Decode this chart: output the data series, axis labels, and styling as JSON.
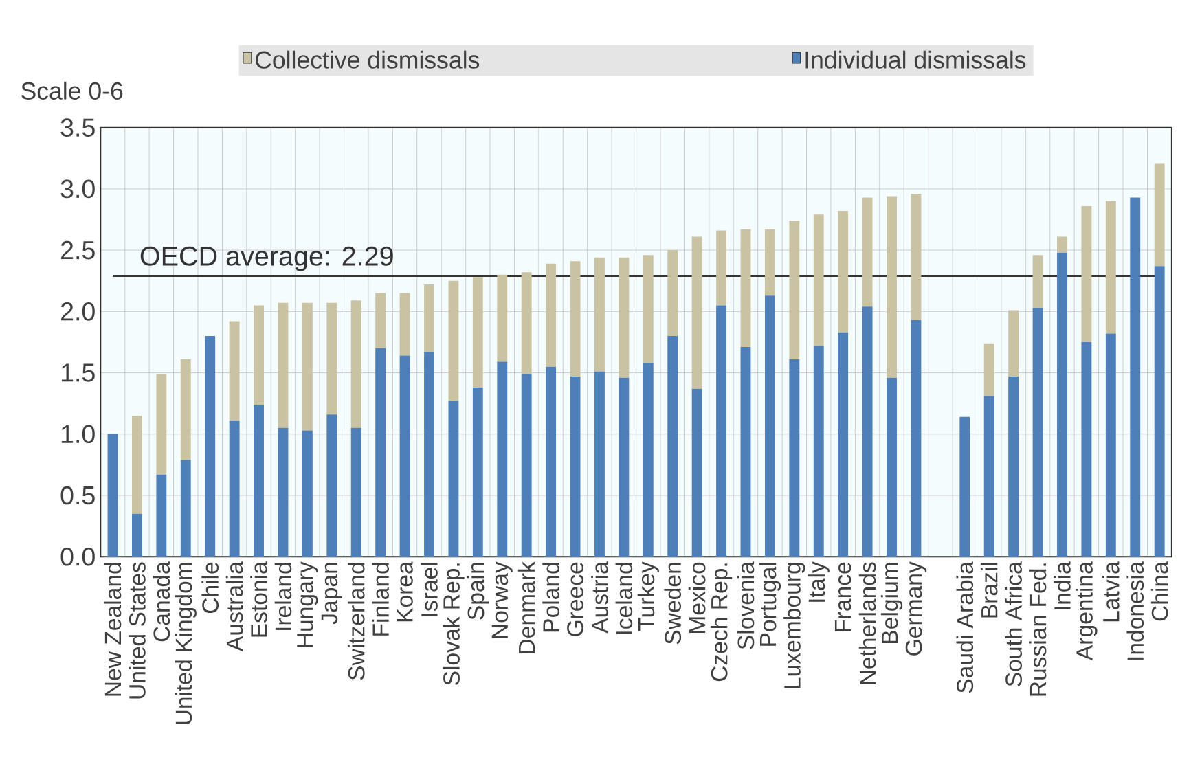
{
  "chart_data": {
    "type": "bar",
    "stacked": true,
    "ylabel": "Scale 0-6",
    "categories": [
      "New Zealand",
      "United States",
      "Canada",
      "United Kingdom",
      "Chile",
      "Australia",
      "Estonia",
      "Ireland",
      "Hungary",
      "Japan",
      "Switzerland",
      "Finland",
      "Korea",
      "Israel",
      "Slovak Rep.",
      "Spain",
      "Norway",
      "Denmark",
      "Poland",
      "Greece",
      "Austria",
      "Iceland",
      "Turkey",
      "Sweden",
      "Mexico",
      "Czech Rep.",
      "Slovenia",
      "Portugal",
      "Luxembourg",
      "Italy",
      "France",
      "Netherlands",
      "Belgium",
      "Germany",
      null,
      "Saudi Arabia",
      "Brazil",
      "South Africa",
      "Russian Fed.",
      "India",
      "Argentina",
      "Latvia",
      "Indonesia",
      "China"
    ],
    "series": [
      {
        "name": "Individual dismissals",
        "color": "#4f7fb8",
        "values": [
          1.0,
          0.35,
          0.67,
          0.79,
          1.8,
          1.11,
          1.24,
          1.05,
          1.03,
          1.16,
          1.05,
          1.7,
          1.64,
          1.67,
          1.27,
          1.38,
          1.59,
          1.49,
          1.55,
          1.47,
          1.51,
          1.46,
          1.58,
          1.8,
          1.37,
          2.05,
          1.71,
          2.13,
          1.61,
          1.72,
          1.83,
          2.04,
          1.46,
          1.93,
          null,
          1.14,
          1.31,
          1.47,
          2.03,
          2.48,
          1.75,
          1.82,
          2.93,
          2.37
        ]
      },
      {
        "name": "Collective dismissals",
        "color": "#c9c3a3",
        "values": [
          0.0,
          0.8,
          0.82,
          0.82,
          0.0,
          0.81,
          0.81,
          1.02,
          1.04,
          0.91,
          1.04,
          0.45,
          0.51,
          0.55,
          0.98,
          0.9,
          0.71,
          0.83,
          0.84,
          0.94,
          0.93,
          0.98,
          0.88,
          0.7,
          1.24,
          0.61,
          0.96,
          0.54,
          1.13,
          1.07,
          0.99,
          0.89,
          1.48,
          1.03,
          null,
          0.0,
          0.43,
          0.54,
          0.43,
          0.13,
          1.11,
          1.08,
          0.0,
          0.84
        ]
      }
    ],
    "ylim": [
      0,
      3.5
    ],
    "yticks": [
      {
        "value": 0,
        "label": "0.0"
      },
      {
        "value": 0.5,
        "label": "0.5"
      },
      {
        "value": 1,
        "label": "1.0"
      },
      {
        "value": 1.5,
        "label": "1.5"
      },
      {
        "value": 2,
        "label": "2.0"
      },
      {
        "value": 2.5,
        "label": "2.5"
      },
      {
        "value": 3,
        "label": "3.0"
      },
      {
        "value": 3.5,
        "label": "3.5"
      }
    ],
    "ref_lines": [
      {
        "axis": "y",
        "value": 2.29,
        "label": "OECD average: 2.29",
        "color": "#333333"
      }
    ],
    "grid": true,
    "legend": "top"
  }
}
